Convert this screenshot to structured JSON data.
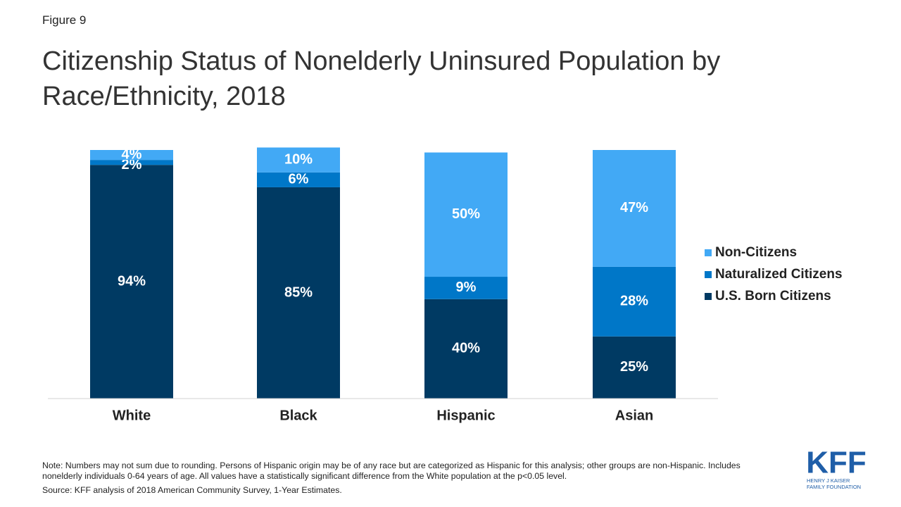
{
  "figure_label": "Figure 9",
  "chart_data": {
    "type": "stacked-bar",
    "title": "Citizenship Status of Nonelderly Uninsured Population by Race/Ethnicity, 2018",
    "categories": [
      "White",
      "Black",
      "Hispanic",
      "Asian"
    ],
    "ylim": [
      0,
      100
    ],
    "legend": "right",
    "series": [
      {
        "name": "U.S. Born Citizens",
        "color": "#003a63",
        "values": [
          94,
          85,
          40,
          25
        ],
        "value_labels": [
          "94%",
          "85%",
          "40%",
          "25%"
        ]
      },
      {
        "name": "Naturalized Citizens",
        "color": "#0077c8",
        "values": [
          2,
          6,
          9,
          28
        ],
        "value_labels": [
          "2%",
          "6%",
          "9%",
          "28%"
        ]
      },
      {
        "name": "Non-Citizens",
        "color": "#42a9f5",
        "values": [
          4,
          10,
          50,
          47
        ],
        "value_labels": [
          "4%",
          "10%",
          "50%",
          "47%"
        ]
      }
    ]
  },
  "notes": {
    "note": "Note: Numbers may not sum due to rounding. Persons of Hispanic origin may be of any race but are categorized as Hispanic for this analysis; other groups are non-Hispanic. Includes nonelderly individuals 0-64 years of age. All values have a statistically significant difference from the White population at the p<0.05 level.",
    "source": "Source: KFF analysis of 2018 American Community Survey, 1-Year Estimates."
  },
  "logo": {
    "text": "KFF",
    "line1": "HENRY J KAISER",
    "line2": "FAMILY FOUNDATION"
  }
}
